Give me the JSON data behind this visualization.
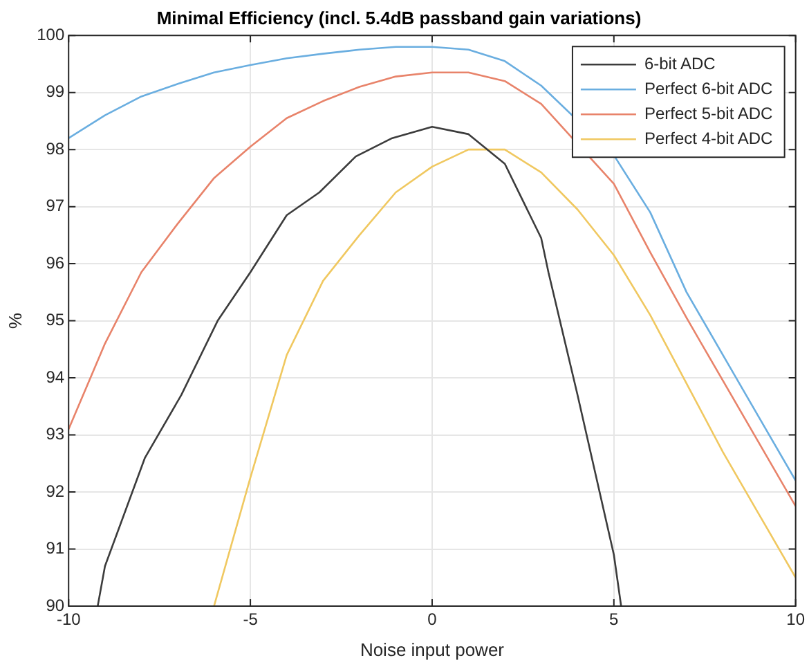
{
  "chart_data": {
    "type": "line",
    "title": "Minimal Efficiency (incl. 5.4dB passband gain variations)",
    "xlabel": "Noise input power",
    "ylabel": "%",
    "xlim": [
      -10,
      10
    ],
    "ylim": [
      90,
      100
    ],
    "xticks": [
      -10,
      -5,
      0,
      5,
      10
    ],
    "yticks": [
      90,
      91,
      92,
      93,
      94,
      95,
      96,
      97,
      98,
      99,
      100
    ],
    "grid": true,
    "legend": "top right",
    "marker": "none",
    "line_style": "solid",
    "series": [
      {
        "name": "6-bit ADC",
        "color": "#3c3c3c",
        "x": [
          -9.2,
          -9,
          -7.9,
          -6.9,
          -5.9,
          -5,
          -4,
          -3.1,
          -2.1,
          -1.1,
          0,
          1,
          2,
          3,
          3.2,
          4,
          5,
          5.2
        ],
        "values": [
          90,
          90.7,
          92.6,
          93.7,
          95,
          95.85,
          96.85,
          97.25,
          97.88,
          98.2,
          98.4,
          98.27,
          97.75,
          96.45,
          95.85,
          93.7,
          90.9,
          90
        ]
      },
      {
        "name": "Perfect 6-bit ADC",
        "color": "#6aaee0",
        "x": [
          -10,
          -9,
          -8,
          -7,
          -6,
          -5,
          -4,
          -3,
          -2,
          -1,
          0,
          1,
          2,
          3,
          4,
          5,
          6,
          7,
          8,
          9,
          10
        ],
        "values": [
          98.2,
          98.6,
          98.93,
          99.15,
          99.35,
          99.48,
          99.6,
          99.68,
          99.75,
          99.8,
          99.8,
          99.75,
          99.55,
          99.12,
          null,
          97.9,
          96.9,
          95.5,
          94.4,
          93.3,
          92.2
        ]
      },
      {
        "name": "Perfect 5-bit ADC",
        "color": "#e8836a",
        "x": [
          -10,
          -9,
          -8,
          -7,
          -6,
          -5,
          -4,
          -3,
          -2,
          -1,
          0,
          1,
          2,
          3,
          4,
          5,
          6,
          7,
          8,
          9,
          10
        ],
        "values": [
          93.1,
          94.6,
          95.85,
          96.7,
          97.5,
          98.05,
          98.55,
          98.85,
          99.1,
          99.28,
          99.35,
          99.35,
          99.2,
          98.8,
          null,
          97.4,
          96.2,
          95.05,
          93.95,
          92.85,
          91.75
        ]
      },
      {
        "name": "Perfect 4-bit ADC",
        "color": "#f0c860",
        "x": [
          -6,
          -5,
          -4,
          -3,
          -2,
          -1,
          0,
          1,
          2,
          3,
          4,
          5,
          6,
          7,
          8,
          9,
          10
        ],
        "values": [
          90,
          92.25,
          94.4,
          95.7,
          96.5,
          97.25,
          97.7,
          98,
          98,
          97.6,
          96.95,
          96.15,
          95.1,
          93.9,
          92.7,
          91.6,
          90.5
        ]
      }
    ]
  }
}
